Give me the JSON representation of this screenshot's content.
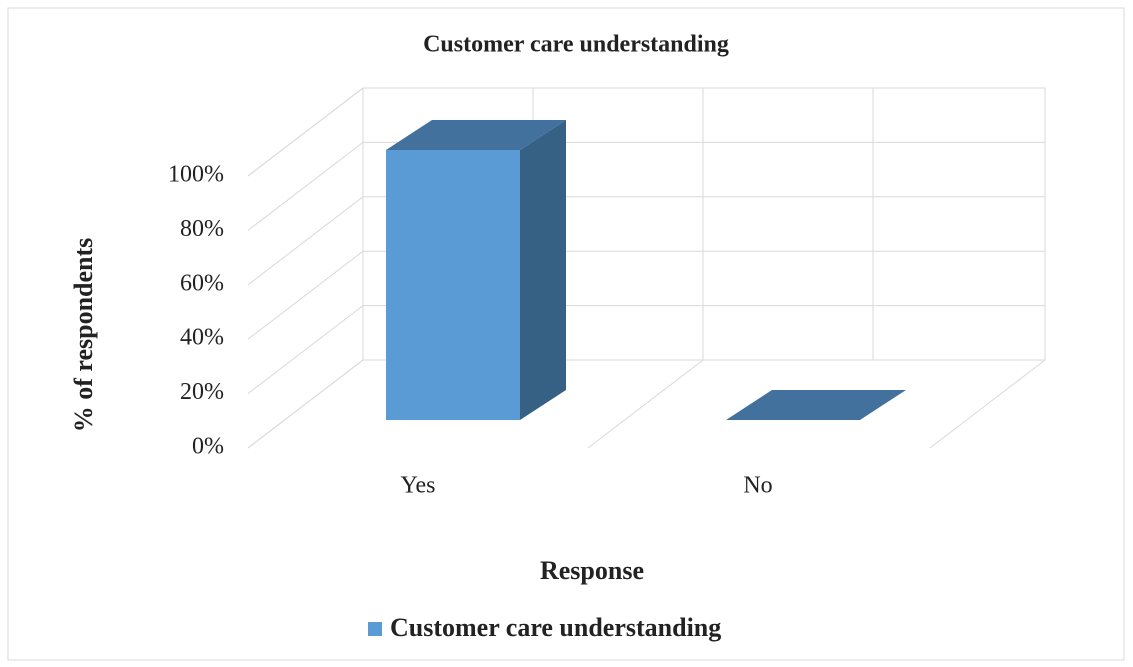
{
  "chart_data": {
    "type": "bar3d",
    "title": "Customer care understanding",
    "x_label": "Response",
    "y_label": "% of respondents",
    "categories": [
      "Yes",
      "No"
    ],
    "series": [
      {
        "name": "Customer care understanding",
        "color": "#5b9bd5",
        "values": [
          100,
          0
        ]
      }
    ],
    "ylim": [
      0,
      100
    ],
    "yticks": [
      {
        "value": 0,
        "label": "0%"
      },
      {
        "value": 20,
        "label": "20%"
      },
      {
        "value": 40,
        "label": "40%"
      },
      {
        "value": 60,
        "label": "60%"
      },
      {
        "value": 80,
        "label": "80%"
      },
      {
        "value": 100,
        "label": "100%"
      }
    ],
    "grid": true,
    "legend": "bottom"
  }
}
